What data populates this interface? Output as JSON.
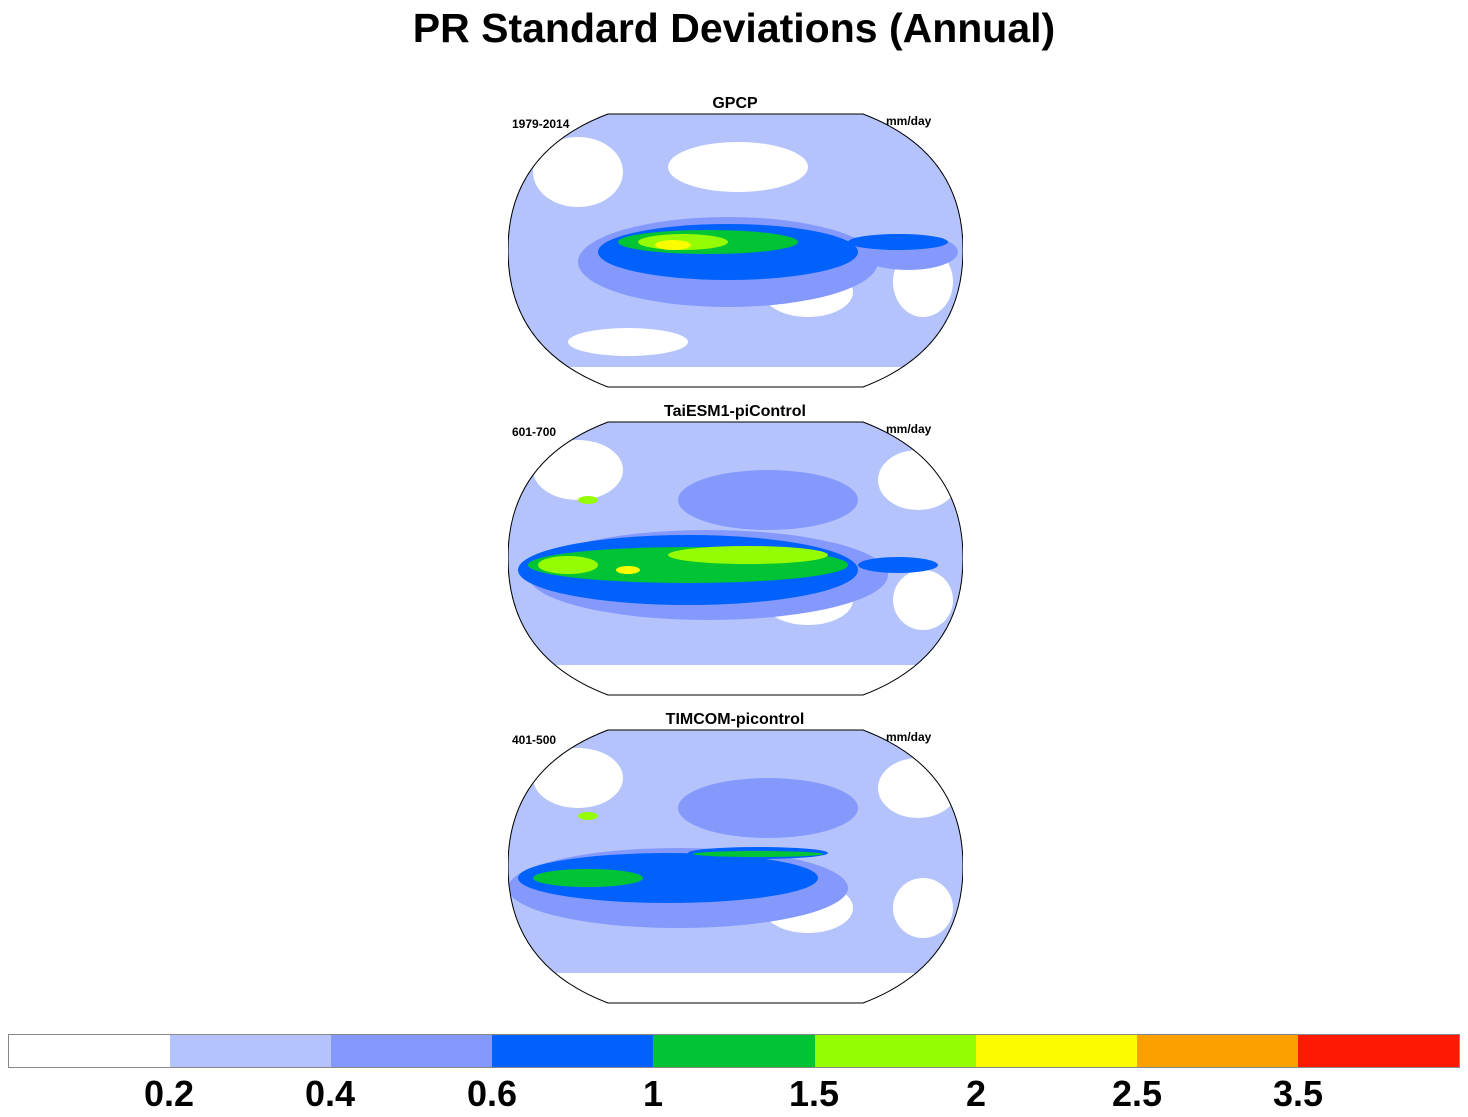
{
  "title": "PR Standard Deviations (Annual)",
  "units": "mm/day",
  "panels": [
    {
      "name": "GPCP",
      "period": "1979-2014",
      "units": "mm/day"
    },
    {
      "name": "TaiESM1-piControl",
      "period": "601-700",
      "units": "mm/day"
    },
    {
      "name": "TIMCOM-picontrol",
      "period": "401-500",
      "units": "mm/day"
    }
  ],
  "colorbar": {
    "colors": [
      "#ffffff",
      "#b4c3fb",
      "#8499fb",
      "#0061fc",
      "#00c434",
      "#96fc04",
      "#fcfc00",
      "#fca000",
      "#fc1a04"
    ],
    "labels": [
      "0.2",
      "0.4",
      "0.6",
      "1",
      "1.5",
      "2",
      "2.5",
      "3.5"
    ]
  }
}
